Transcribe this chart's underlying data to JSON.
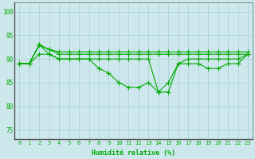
{
  "xlabel": "Humidité relative (%)",
  "xlim": [
    -0.5,
    23.5
  ],
  "ylim": [
    73,
    102
  ],
  "yticks": [
    75,
    80,
    85,
    90,
    95,
    100
  ],
  "xtick_labels": [
    "0",
    "1",
    "2",
    "3",
    "4",
    "5",
    "6",
    "7",
    "8",
    "9",
    "10",
    "11",
    "12",
    "13",
    "14",
    "15",
    "16",
    "17",
    "18",
    "19",
    "20",
    "21",
    "22",
    "23"
  ],
  "background_color": "#cde8ec",
  "grid_color": "#aacdd4",
  "line_color": "#00aa00",
  "tick_color": "#00aa00",
  "series": [
    [
      89,
      89,
      93,
      91,
      90,
      90,
      90,
      90,
      88,
      87,
      85,
      84,
      84,
      85,
      83,
      85,
      89,
      89,
      89,
      88,
      88,
      89,
      89,
      91
    ],
    [
      89,
      89,
      93,
      92,
      91,
      91,
      91,
      91,
      91,
      91,
      91,
      91,
      91,
      91,
      91,
      91,
      91,
      91,
      91,
      91,
      91,
      91,
      91,
      91
    ],
    [
      89,
      89,
      93,
      92,
      91.5,
      91.5,
      91.5,
      91.5,
      91.5,
      91.5,
      91.5,
      91.5,
      91.5,
      91.5,
      91.5,
      91.5,
      91.5,
      91.5,
      91.5,
      91.5,
      91.5,
      91.5,
      91.5,
      91.5
    ],
    [
      89,
      89,
      91,
      91,
      90,
      90,
      90,
      90,
      90,
      90,
      90,
      90,
      90,
      90,
      83,
      83,
      89,
      90,
      90,
      90,
      90,
      90,
      90,
      91
    ]
  ],
  "line_width": 0.8,
  "marker_size": 2.0,
  "xlabel_fontsize": 6.0,
  "tick_fontsize": 5.0,
  "spine_color": "#666666"
}
